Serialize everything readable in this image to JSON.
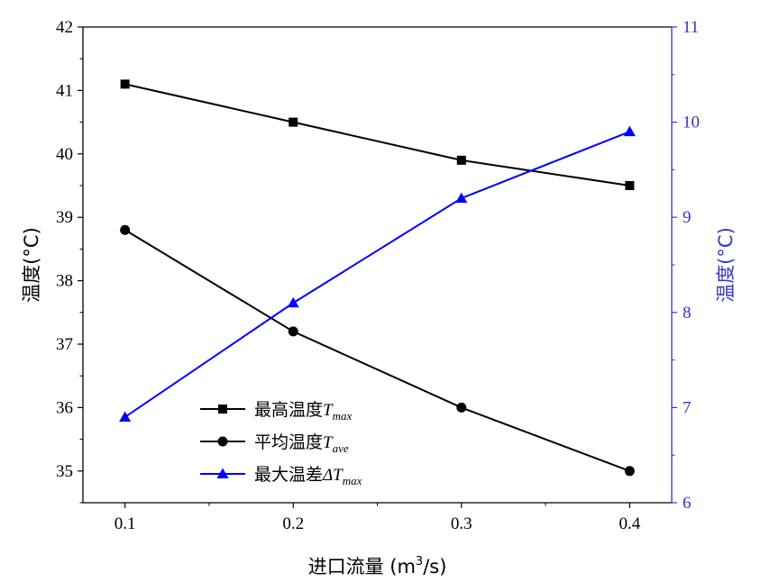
{
  "chart_data": {
    "type": "line",
    "x": [
      0.1,
      0.2,
      0.3,
      0.4
    ],
    "x_tick_labels": [
      "0.1",
      "0.2",
      "0.3",
      "0.4"
    ],
    "xlim": [
      0.075,
      0.425
    ],
    "xlabel_text": "进口流量 (m",
    "xlabel_sup": "3",
    "xlabel_tail": "/s)",
    "ylabel_left": "温度(°C)",
    "ylabel_right": "温度(°C)",
    "ylim_left": [
      34.5,
      42
    ],
    "ylim_right": [
      6,
      11
    ],
    "y_ticks_left": [
      35,
      36,
      37,
      38,
      39,
      40,
      41,
      42
    ],
    "y_ticks_right": [
      6,
      7,
      8,
      9,
      10,
      11
    ],
    "legend_position": "bottom-left",
    "grid": false,
    "series": [
      {
        "name_main": "最高温度",
        "name_sym": "T",
        "name_sub": "max",
        "axis": "left",
        "marker": "square",
        "color": "#000000",
        "values": [
          41.1,
          40.5,
          39.9,
          39.5
        ]
      },
      {
        "name_main": "平均温度",
        "name_sym": "T",
        "name_sub": "ave",
        "axis": "left",
        "marker": "circle",
        "color": "#000000",
        "values": [
          38.8,
          37.2,
          36.0,
          35.0
        ]
      },
      {
        "name_main": "最大温差",
        "name_sym": "ΔT",
        "name_sub": "max",
        "axis": "right",
        "marker": "triangle",
        "color": "#0000ff",
        "values": [
          6.9,
          8.1,
          9.2,
          9.9
        ]
      }
    ],
    "right_axis_color": "#3333cc"
  }
}
